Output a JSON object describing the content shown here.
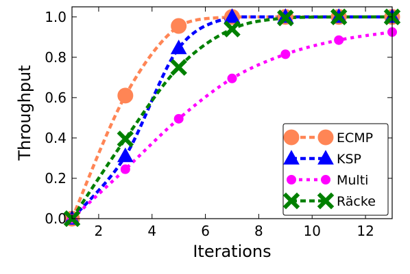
{
  "chart_data": {
    "type": "line",
    "title": "",
    "xlabel": "Iterations",
    "ylabel": "Throughput",
    "xlim": [
      1,
      13
    ],
    "ylim": [
      0,
      1.05
    ],
    "xticks": [
      2,
      4,
      6,
      8,
      10,
      12
    ],
    "yticks": [
      0.0,
      0.2,
      0.4,
      0.6,
      0.8,
      1.0
    ],
    "xtick_labels": [
      "2",
      "4",
      "6",
      "8",
      "10",
      "12"
    ],
    "ytick_labels": [
      "0.0",
      "0.2",
      "0.4",
      "0.6",
      "0.8",
      "1.0"
    ],
    "grid": false,
    "legend_position": "lower-right",
    "series": [
      {
        "name": "ECMP",
        "color": "#ff8555",
        "marker": "circle",
        "line_style": "dashed",
        "x": [
          1,
          3,
          5,
          7,
          9,
          11,
          13
        ],
        "y": [
          0.0,
          0.61,
          0.955,
          1.0,
          1.0,
          1.0,
          1.0
        ]
      },
      {
        "name": "KSP",
        "color": "#0000ff",
        "marker": "triangle",
        "line_style": "dashed",
        "x": [
          1,
          3,
          5,
          7,
          9,
          11,
          13
        ],
        "y": [
          0.0,
          0.31,
          0.845,
          1.0,
          1.0,
          1.0,
          1.0
        ]
      },
      {
        "name": "Multi",
        "color": "#ff00ff",
        "marker": "small-circle",
        "line_style": "dotted",
        "x": [
          1,
          3,
          5,
          7,
          9,
          11,
          13
        ],
        "y": [
          0.0,
          0.245,
          0.495,
          0.695,
          0.815,
          0.885,
          0.925
        ]
      },
      {
        "name": "Räcke",
        "color": "#008000",
        "marker": "x",
        "line_style": "dashed",
        "x": [
          1,
          3,
          5,
          7,
          9,
          11,
          13
        ],
        "y": [
          0.0,
          0.395,
          0.75,
          0.94,
          0.995,
          1.0,
          1.0
        ]
      }
    ]
  }
}
